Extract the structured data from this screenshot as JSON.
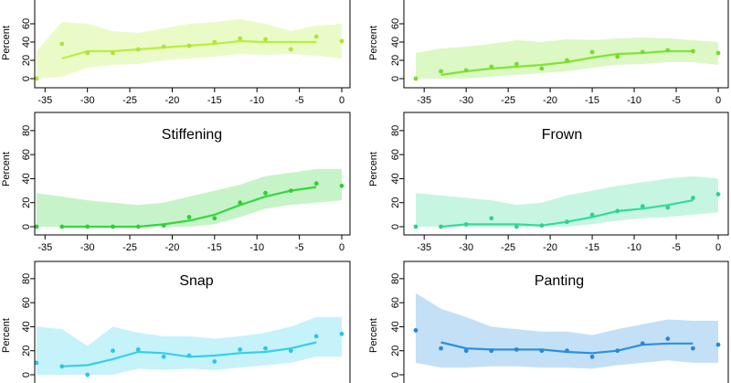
{
  "panel_colors": {
    "panel-1": "#b8f038",
    "panel-2": "#7fe62e",
    "panel-3": "#33d93b",
    "panel-4": "#33dd98",
    "panel-5": "#33d0ee",
    "panel-6": "#2a90e0"
  },
  "chart_data": [
    {
      "id": "panel-1",
      "type": "line",
      "title": "",
      "xlabel": "",
      "ylabel": "Percent",
      "xlim": [
        -37,
        1
      ],
      "ylim": [
        0,
        90
      ],
      "xticks": [
        -35,
        -30,
        -25,
        -20,
        -15,
        -10,
        -5,
        0
      ],
      "yticks": [
        0,
        20,
        40,
        60
      ],
      "show_xticks": true,
      "points": {
        "x": [
          -36,
          -33,
          -30,
          -27,
          -24,
          -21,
          -18,
          -15,
          -12,
          -9,
          -6,
          -3,
          0
        ],
        "y": [
          0,
          38,
          28,
          28,
          32,
          35,
          36,
          40,
          44,
          43,
          32,
          46,
          41
        ]
      },
      "trend": {
        "x": [
          -33,
          -30,
          -27,
          -24,
          -21,
          -18,
          -15,
          -12,
          -9,
          -6,
          -3
        ],
        "y": [
          22,
          30,
          30,
          32,
          34,
          36,
          38,
          41,
          40,
          40,
          40
        ]
      },
      "band": {
        "x": [
          -36,
          -33,
          -30,
          -27,
          -24,
          -21,
          -18,
          -15,
          -12,
          -9,
          -6,
          -3,
          0
        ],
        "low": [
          0,
          2,
          12,
          15,
          16,
          20,
          22,
          24,
          27,
          26,
          27,
          25,
          22
        ],
        "high": [
          30,
          62,
          60,
          52,
          50,
          55,
          60,
          62,
          65,
          60,
          52,
          58,
          60
        ]
      }
    },
    {
      "id": "panel-2",
      "type": "line",
      "title": "",
      "xlabel": "",
      "ylabel": "Percent",
      "xlim": [
        -37,
        1
      ],
      "ylim": [
        0,
        90
      ],
      "xticks": [
        -35,
        -30,
        -25,
        -20,
        -15,
        -10,
        -5,
        0
      ],
      "yticks": [
        0,
        20,
        40,
        60
      ],
      "show_xticks": true,
      "points": {
        "x": [
          -36,
          -33,
          -30,
          -27,
          -24,
          -21,
          -18,
          -15,
          -12,
          -9,
          -6,
          -3,
          0
        ],
        "y": [
          0,
          8,
          9,
          13,
          16,
          11,
          20,
          29,
          24,
          29,
          31,
          30,
          28
        ]
      },
      "trend": {
        "x": [
          -33,
          -30,
          -27,
          -24,
          -21,
          -18,
          -15,
          -12,
          -9,
          -6,
          -3
        ],
        "y": [
          4,
          8,
          11,
          13,
          15,
          18,
          23,
          27,
          28,
          30,
          30
        ]
      },
      "band": {
        "x": [
          -36,
          -33,
          -30,
          -27,
          -24,
          -21,
          -18,
          -15,
          -12,
          -9,
          -6,
          -3,
          0
        ],
        "low": [
          0,
          0,
          0,
          2,
          4,
          6,
          8,
          12,
          15,
          16,
          18,
          18,
          15
        ],
        "high": [
          28,
          33,
          35,
          38,
          42,
          40,
          43,
          42,
          44,
          45,
          44,
          42,
          40
        ]
      }
    },
    {
      "id": "panel-3",
      "type": "line",
      "title": "Stiffening",
      "xlabel": "",
      "ylabel": "Percent",
      "xlim": [
        -37,
        1
      ],
      "ylim": [
        0,
        90
      ],
      "xticks": [
        -35,
        -30,
        -25,
        -20,
        -15,
        -10,
        -5,
        0
      ],
      "yticks": [
        0,
        20,
        40,
        60,
        80
      ],
      "show_xticks": true,
      "points": {
        "x": [
          -36,
          -33,
          -30,
          -27,
          -24,
          -21,
          -18,
          -15,
          -12,
          -9,
          -6,
          -3,
          0
        ],
        "y": [
          0,
          0,
          0,
          0,
          0,
          1,
          8,
          7,
          20,
          28,
          30,
          36,
          34
        ]
      },
      "trend": {
        "x": [
          -33,
          -30,
          -27,
          -24,
          -21,
          -18,
          -15,
          -12,
          -9,
          -6,
          -3
        ],
        "y": [
          0,
          0,
          0,
          0,
          2,
          5,
          10,
          18,
          25,
          30,
          33
        ]
      },
      "band": {
        "x": [
          -36,
          -33,
          -30,
          -27,
          -24,
          -21,
          -18,
          -15,
          -12,
          -9,
          -6,
          -3,
          0
        ],
        "low": [
          0,
          0,
          0,
          0,
          0,
          0,
          0,
          2,
          8,
          15,
          18,
          20,
          22
        ],
        "high": [
          28,
          25,
          22,
          20,
          18,
          20,
          25,
          30,
          35,
          42,
          45,
          48,
          48
        ]
      }
    },
    {
      "id": "panel-4",
      "type": "line",
      "title": "Frown",
      "xlabel": "",
      "ylabel": "Percent",
      "xlim": [
        -37,
        1
      ],
      "ylim": [
        0,
        90
      ],
      "xticks": [
        -35,
        -30,
        -25,
        -20,
        -15,
        -10,
        -5,
        0
      ],
      "yticks": [
        0,
        20,
        40,
        60,
        80
      ],
      "show_xticks": true,
      "points": {
        "x": [
          -36,
          -33,
          -30,
          -27,
          -24,
          -21,
          -18,
          -15,
          -12,
          -9,
          -6,
          -3,
          0
        ],
        "y": [
          0,
          0,
          2,
          7,
          0,
          1,
          4,
          10,
          13,
          17,
          16,
          24,
          27
        ]
      },
      "trend": {
        "x": [
          -33,
          -30,
          -27,
          -24,
          -21,
          -18,
          -15,
          -12,
          -9,
          -6,
          -3
        ],
        "y": [
          0,
          2,
          2,
          2,
          1,
          4,
          8,
          13,
          15,
          18,
          22
        ]
      },
      "band": {
        "x": [
          -36,
          -33,
          -30,
          -27,
          -24,
          -21,
          -18,
          -15,
          -12,
          -9,
          -6,
          -3,
          0
        ],
        "low": [
          0,
          0,
          0,
          0,
          0,
          0,
          0,
          2,
          5,
          7,
          8,
          10,
          12
        ],
        "high": [
          28,
          26,
          24,
          22,
          18,
          20,
          26,
          30,
          34,
          37,
          40,
          42,
          40
        ]
      }
    },
    {
      "id": "panel-5",
      "type": "line",
      "title": "Snap",
      "xlabel": "",
      "ylabel": "Percent",
      "xlim": [
        -37,
        1
      ],
      "ylim": [
        0,
        90
      ],
      "xticks": [
        -35,
        -30,
        -25,
        -20,
        -15,
        -10,
        -5,
        0
      ],
      "yticks": [
        0,
        20,
        40,
        60,
        80
      ],
      "show_xticks": false,
      "points": {
        "x": [
          -36,
          -33,
          -30,
          -27,
          -24,
          -21,
          -18,
          -15,
          -12,
          -9,
          -6,
          -3,
          0
        ],
        "y": [
          10,
          7,
          0,
          20,
          21,
          15,
          16,
          11,
          21,
          22,
          20,
          32,
          34
        ]
      },
      "trend": {
        "x": [
          -33,
          -30,
          -27,
          -24,
          -21,
          -18,
          -15,
          -12,
          -9,
          -6,
          -3
        ],
        "y": [
          7,
          8,
          13,
          19,
          18,
          15,
          16,
          18,
          19,
          22,
          27
        ]
      },
      "band": {
        "x": [
          -36,
          -33,
          -30,
          -27,
          -24,
          -21,
          -18,
          -15,
          -12,
          -9,
          -6,
          -3,
          0
        ],
        "low": [
          0,
          0,
          0,
          0,
          5,
          4,
          5,
          4,
          6,
          8,
          10,
          15,
          15
        ],
        "high": [
          40,
          38,
          24,
          40,
          35,
          32,
          32,
          30,
          32,
          35,
          40,
          48,
          48
        ]
      }
    },
    {
      "id": "panel-6",
      "type": "line",
      "title": "Panting",
      "xlabel": "",
      "ylabel": "Percent",
      "xlim": [
        -37,
        1
      ],
      "ylim": [
        0,
        90
      ],
      "xticks": [
        -35,
        -30,
        -25,
        -20,
        -15,
        -10,
        -5,
        0
      ],
      "yticks": [
        0,
        20,
        40,
        60,
        80
      ],
      "show_xticks": false,
      "points": {
        "x": [
          -36,
          -33,
          -30,
          -27,
          -24,
          -21,
          -18,
          -15,
          -12,
          -9,
          -6,
          -3,
          0
        ],
        "y": [
          37,
          22,
          20,
          20,
          21,
          20,
          20,
          15,
          20,
          26,
          30,
          22,
          25
        ]
      },
      "trend": {
        "x": [
          -33,
          -30,
          -27,
          -24,
          -21,
          -18,
          -15,
          -12,
          -9,
          -6,
          -3
        ],
        "y": [
          27,
          22,
          21,
          21,
          21,
          19,
          18,
          20,
          25,
          26,
          26
        ]
      },
      "band": {
        "x": [
          -36,
          -33,
          -30,
          -27,
          -24,
          -21,
          -18,
          -15,
          -12,
          -9,
          -6,
          -3,
          0
        ],
        "low": [
          10,
          6,
          6,
          7,
          7,
          6,
          6,
          5,
          8,
          10,
          12,
          10,
          10
        ],
        "high": [
          68,
          55,
          48,
          40,
          38,
          36,
          36,
          33,
          38,
          42,
          46,
          45,
          45
        ]
      }
    }
  ]
}
